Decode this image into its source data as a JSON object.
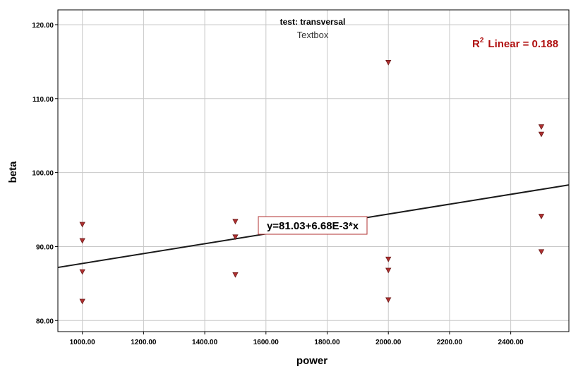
{
  "chart_data": {
    "type": "scatter",
    "subtitle": "test: transversal",
    "textbox": "Textbox",
    "xlabel": "power",
    "ylabel": "beta",
    "xlim": [
      920,
      2590
    ],
    "ylim": [
      78.5,
      122
    ],
    "x_ticks": [
      1000,
      1200,
      1400,
      1600,
      1800,
      2000,
      2200,
      2400
    ],
    "x_tick_labels": [
      "1000.00",
      "1200.00",
      "1400.00",
      "1600.00",
      "1800.00",
      "2000.00",
      "2200.00",
      "2400.00"
    ],
    "y_ticks": [
      80,
      90,
      100,
      110,
      120
    ],
    "y_tick_labels": [
      "80.00",
      "90.00",
      "100.00",
      "110.00",
      "120.00"
    ],
    "grid": true,
    "marker": "triangle-down",
    "marker_color": "#b03030",
    "points": [
      {
        "x": 1000,
        "y": 93.0
      },
      {
        "x": 1000,
        "y": 90.8
      },
      {
        "x": 1000,
        "y": 86.6
      },
      {
        "x": 1000,
        "y": 82.6
      },
      {
        "x": 1500,
        "y": 93.4
      },
      {
        "x": 1500,
        "y": 91.3
      },
      {
        "x": 1500,
        "y": 86.2
      },
      {
        "x": 2000,
        "y": 114.9
      },
      {
        "x": 2000,
        "y": 88.3
      },
      {
        "x": 2000,
        "y": 86.8
      },
      {
        "x": 2000,
        "y": 82.8
      },
      {
        "x": 2500,
        "y": 106.2
      },
      {
        "x": 2500,
        "y": 105.2
      },
      {
        "x": 2500,
        "y": 94.1
      },
      {
        "x": 2500,
        "y": 89.3
      }
    ],
    "fit_line": {
      "intercept": 81.03,
      "slope": 0.00668,
      "equation_label": "y=81.03+6.68E-3*x",
      "r2_prefix": "R",
      "r2_sup": "2",
      "r2_text": "Linear = 0.188",
      "line_color": "#1a1a1a",
      "label_color": "#b01010"
    }
  }
}
